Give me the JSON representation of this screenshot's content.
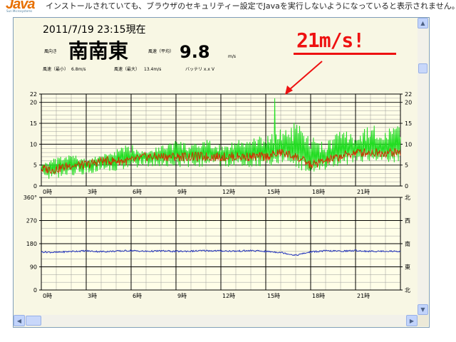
{
  "banner": {
    "logo": "Java",
    "logo_sub": "Sun Microsystems",
    "message": "インストールされていても、ブラウザのセキュリティー設定でJavaを実行しないようになっていると表示されません。"
  },
  "panel": {
    "datetime": "2011/7/19 23:15現在",
    "direction_label": "風向き",
    "direction": "南南東",
    "avg_label": "風速（平均）",
    "avg_value": "9.8",
    "avg_unit": "m/s",
    "min_label": "風速（最小）",
    "min_value": "6.8m/s",
    "max_label": "風速（最大）",
    "max_value": "13.4m/s",
    "battery": "バッテリ x.x V"
  },
  "callout": {
    "text": "21m/s!"
  },
  "colors": {
    "gust": "#22dd22",
    "avg": "#cc3300",
    "direction": "#2233bb",
    "callout": "#ee1111",
    "grid": "#000000",
    "bg": "#f8f7e4"
  },
  "chart_data": [
    {
      "type": "line",
      "xlabels": [
        "0時",
        "3時",
        "6時",
        "9時",
        "12時",
        "15時",
        "18時",
        "21時"
      ],
      "x_range": [
        0,
        24
      ],
      "yticks": [
        0,
        5,
        10,
        15,
        20,
        22
      ],
      "ylim": [
        0,
        22
      ],
      "series": [
        {
          "values": [
            5,
            6,
            7,
            6,
            7,
            8,
            9,
            8,
            9,
            10,
            9,
            10,
            9,
            10,
            10,
            11,
            12,
            13,
            10,
            9,
            12,
            11,
            13,
            12,
            13
          ]
        },
        {
          "values": [
            4,
            4,
            5,
            5,
            6,
            6,
            6,
            7,
            7,
            7,
            7,
            7,
            7,
            7,
            7,
            7,
            8,
            7,
            5,
            6,
            7,
            8,
            8,
            8,
            8
          ]
        }
      ]
    },
    {
      "type": "line",
      "xlabels": [
        "0時",
        "3時",
        "6時",
        "9時",
        "12時",
        "15時",
        "18時",
        "21時"
      ],
      "x_range": [
        0,
        24
      ],
      "yticks": [
        0,
        90,
        180,
        270,
        360
      ],
      "ylim": [
        0,
        360
      ],
      "right_labels": [
        "北",
        "東",
        "南",
        "西",
        "北"
      ],
      "series": [
        {
          "values": [
            148,
            146,
            150,
            152,
            149,
            151,
            153,
            150,
            152,
            150,
            151,
            153,
            152,
            151,
            153,
            150,
            146,
            135,
            148,
            152,
            151,
            153,
            150,
            151,
            150
          ]
        }
      ]
    }
  ]
}
